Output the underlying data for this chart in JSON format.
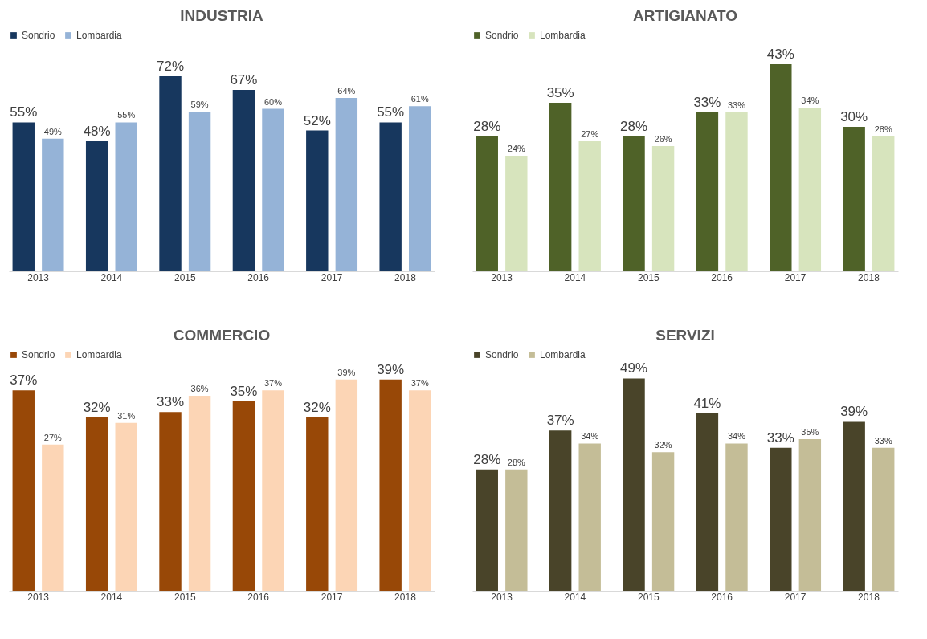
{
  "chart_data": [
    {
      "type": "bar",
      "title": "INDUSTRIA",
      "categories": [
        "2013",
        "2014",
        "2015",
        "2016",
        "2017",
        "2018"
      ],
      "legend": "top",
      "tick_labels": "x",
      "grid": false,
      "series": [
        {
          "name": "Sondrio",
          "color": "#17375e",
          "values": [
            55,
            48,
            72,
            67,
            52,
            55
          ],
          "value_labels": [
            "55%",
            "48%",
            "72%",
            "67%",
            "52%",
            "55%"
          ]
        },
        {
          "name": "Lombardia",
          "color": "#95b3d7",
          "values": [
            49,
            55,
            59,
            60,
            64,
            61
          ],
          "value_labels": [
            "49%",
            "55%",
            "59%",
            "60%",
            "64%",
            "61%"
          ]
        }
      ]
    },
    {
      "type": "bar",
      "title": "ARTIGIANATO",
      "categories": [
        "2013",
        "2014",
        "2015",
        "2016",
        "2017",
        "2018"
      ],
      "legend": "top",
      "tick_labels": "x",
      "grid": false,
      "series": [
        {
          "name": "Sondrio",
          "color": "#4f6228",
          "values": [
            28,
            35,
            28,
            33,
            43,
            30
          ],
          "value_labels": [
            "28%",
            "35%",
            "28%",
            "33%",
            "43%",
            "30%"
          ]
        },
        {
          "name": "Lombardia",
          "color": "#d7e4bd",
          "values": [
            24,
            27,
            26,
            33,
            34,
            28
          ],
          "value_labels": [
            "24%",
            "27%",
            "26%",
            "33%",
            "34%",
            "28%"
          ]
        }
      ]
    },
    {
      "type": "bar",
      "title": "COMMERCIO",
      "categories": [
        "2013",
        "2014",
        "2015",
        "2016",
        "2017",
        "2018"
      ],
      "legend": "top",
      "tick_labels": "x",
      "grid": false,
      "series": [
        {
          "name": "Sondrio",
          "color": "#984807",
          "values": [
            37,
            32,
            33,
            35,
            32,
            39
          ],
          "value_labels": [
            "37%",
            "32%",
            "33%",
            "35%",
            "32%",
            "39%"
          ]
        },
        {
          "name": "Lombardia",
          "color": "#fcd5b5",
          "values": [
            27,
            31,
            36,
            37,
            39,
            37
          ],
          "value_labels": [
            "27%",
            "31%",
            "36%",
            "37%",
            "39%",
            "37%"
          ]
        }
      ]
    },
    {
      "type": "bar",
      "title": "SERVIZI",
      "categories": [
        "2013",
        "2014",
        "2015",
        "2016",
        "2017",
        "2018"
      ],
      "legend": "top",
      "tick_labels": "x",
      "grid": false,
      "series": [
        {
          "name": "Sondrio",
          "color": "#494429",
          "values": [
            28,
            37,
            49,
            41,
            33,
            39
          ],
          "value_labels": [
            "28%",
            "37%",
            "49%",
            "41%",
            "33%",
            "39%"
          ]
        },
        {
          "name": "Lombardia",
          "color": "#c4bd97",
          "values": [
            28,
            34,
            32,
            34,
            35,
            33
          ],
          "value_labels": [
            "28%",
            "34%",
            "32%",
            "34%",
            "35%",
            "33%"
          ]
        }
      ]
    }
  ]
}
